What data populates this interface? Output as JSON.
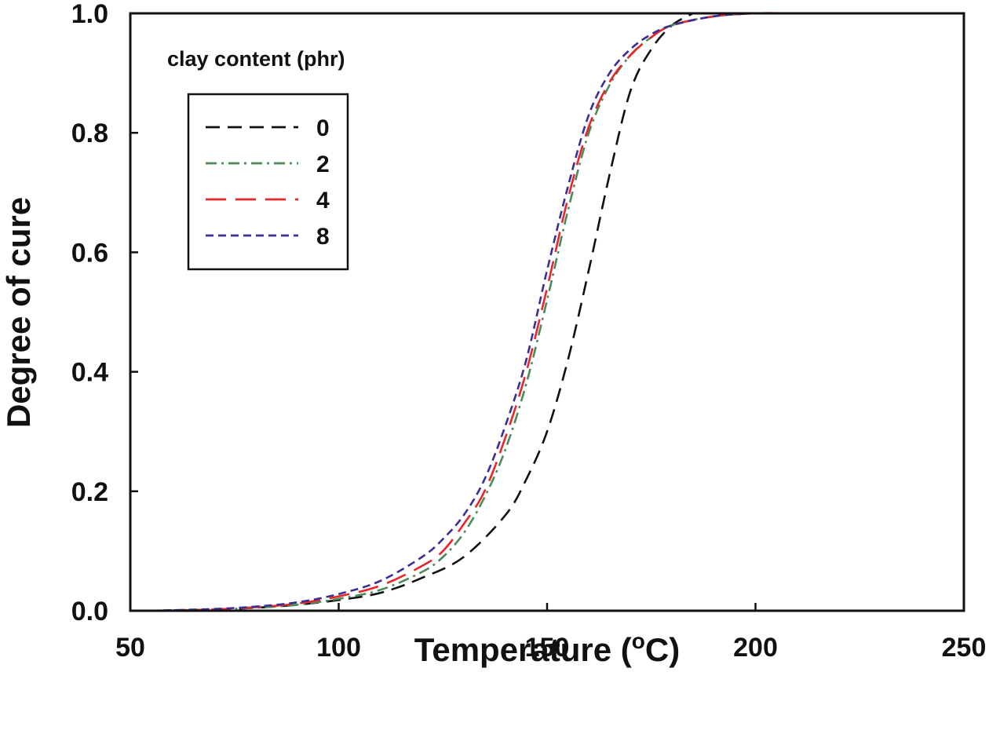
{
  "chart_data": {
    "type": "line",
    "xlabel": "Temperature (",
    "xlabel_sup": "o",
    "xlabel_unit": "C)",
    "ylabel": "Degree of cure",
    "xlim": [
      50,
      250
    ],
    "ylim": [
      0.0,
      1.0
    ],
    "x_ticks": [
      "50",
      "100",
      "150",
      "200",
      "250"
    ],
    "y_ticks": [
      "0.0",
      "0.2",
      "0.4",
      "0.6",
      "0.8",
      "1.0"
    ],
    "grid": false,
    "legend": {
      "title": "clay content (phr)",
      "placement": "top-left"
    },
    "series": [
      {
        "name": "0",
        "color": "#111111",
        "dash": "dashed",
        "x": [
          55,
          70,
          80,
          90,
          100,
          110,
          120,
          130,
          140,
          145,
          150,
          155,
          160,
          165,
          170,
          175,
          180,
          185
        ],
        "y": [
          0.0,
          0.002,
          0.005,
          0.01,
          0.018,
          0.03,
          0.055,
          0.09,
          0.16,
          0.22,
          0.3,
          0.42,
          0.57,
          0.73,
          0.87,
          0.94,
          0.98,
          1.0
        ]
      },
      {
        "name": "2",
        "color": "#4d8a5a",
        "dash": "dash-dot",
        "x": [
          55,
          70,
          80,
          90,
          100,
          110,
          120,
          125,
          130,
          135,
          140,
          145,
          150,
          155,
          160,
          165,
          170,
          175,
          180,
          190,
          200,
          210
        ],
        "y": [
          0.0,
          0.002,
          0.005,
          0.01,
          0.02,
          0.035,
          0.065,
          0.09,
          0.13,
          0.19,
          0.27,
          0.38,
          0.52,
          0.67,
          0.8,
          0.88,
          0.93,
          0.96,
          0.98,
          0.995,
          1.0,
          1.0
        ]
      },
      {
        "name": "4",
        "color": "#e8262a",
        "dash": "long-dash",
        "x": [
          55,
          70,
          80,
          90,
          100,
          110,
          120,
          125,
          130,
          135,
          140,
          145,
          150,
          155,
          160,
          165,
          170,
          175,
          180,
          190,
          200,
          210
        ],
        "y": [
          0.0,
          0.002,
          0.006,
          0.012,
          0.024,
          0.042,
          0.075,
          0.1,
          0.145,
          0.2,
          0.29,
          0.4,
          0.54,
          0.69,
          0.81,
          0.885,
          0.93,
          0.96,
          0.98,
          0.995,
          1.0,
          1.0
        ]
      },
      {
        "name": "8",
        "color": "#3b2f95",
        "dash": "short-dash",
        "x": [
          55,
          70,
          80,
          90,
          100,
          110,
          120,
          125,
          130,
          135,
          140,
          145,
          150,
          155,
          160,
          165,
          170,
          175,
          180,
          190,
          200,
          210,
          230
        ],
        "y": [
          0.0,
          0.003,
          0.007,
          0.014,
          0.028,
          0.05,
          0.09,
          0.12,
          0.16,
          0.22,
          0.31,
          0.42,
          0.57,
          0.71,
          0.83,
          0.9,
          0.94,
          0.965,
          0.98,
          0.995,
          1.0,
          1.0,
          1.0
        ]
      }
    ]
  }
}
